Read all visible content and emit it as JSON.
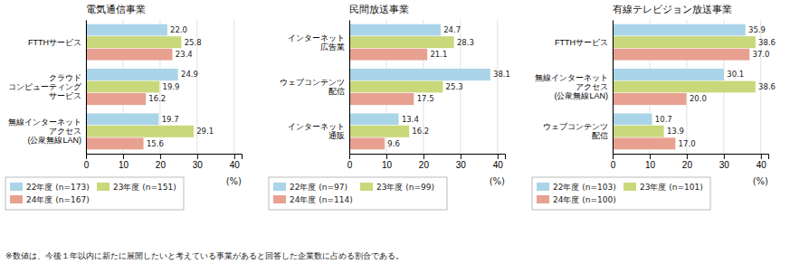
{
  "chart_data": [
    {
      "type": "bar",
      "orientation": "horizontal",
      "title": "電気通信事業",
      "categories": [
        "FTTHサービス",
        "クラウド\nコンピューティング\nサービス",
        "無線インターネット\nアクセス\n(公衆無線LAN)"
      ],
      "series": [
        {
          "name": "22年度 (n=173)",
          "color": "#aad4e8",
          "values": [
            22.0,
            24.9,
            19.7
          ],
          "value_labels": [
            "22.0",
            "24.9",
            "19.7"
          ]
        },
        {
          "name": "23年度 (n=151)",
          "color": "#c8d87a",
          "values": [
            25.8,
            19.9,
            29.1
          ],
          "value_labels": [
            "25.8",
            "19.9",
            "29.1"
          ]
        },
        {
          "name": "24年度 (n=167)",
          "color": "#e8a090",
          "values": [
            23.4,
            16.2,
            15.6
          ],
          "value_labels": [
            "23.4",
            "16.2",
            "15.6"
          ]
        }
      ],
      "xlabel": "(%)",
      "xlim": [
        0,
        42
      ],
      "xticks": [
        0,
        10,
        20,
        30,
        40
      ],
      "grid": true,
      "data_labels": true,
      "legend": "bottom"
    },
    {
      "type": "bar",
      "orientation": "horizontal",
      "title": "民間放送事業",
      "categories": [
        "インターネット\n広告業",
        "ウェブコンテンツ\n配信",
        "インターネット\n通販"
      ],
      "series": [
        {
          "name": "22年度 (n=97)",
          "color": "#aad4e8",
          "values": [
            24.7,
            38.1,
            13.4
          ],
          "value_labels": [
            "24.7",
            "38.1",
            "13.4"
          ]
        },
        {
          "name": "23年度 (n=99)",
          "color": "#c8d87a",
          "values": [
            28.3,
            25.3,
            16.2
          ],
          "value_labels": [
            "28.3",
            "25.3",
            "16.2"
          ]
        },
        {
          "name": "24年度 (n=114)",
          "color": "#e8a090",
          "values": [
            21.1,
            17.5,
            9.6
          ],
          "value_labels": [
            "21.1",
            "17.5",
            "9.6"
          ]
        }
      ],
      "xlabel": "(%)",
      "xlim": [
        0,
        42
      ],
      "xticks": [
        0,
        10,
        20,
        30,
        40
      ],
      "grid": true,
      "data_labels": true,
      "legend": "bottom"
    },
    {
      "type": "bar",
      "orientation": "horizontal",
      "title": "有線テレビジョン放送事業",
      "categories": [
        "FTTHサービス",
        "無線インターネット\nアクセス\n(公衆無線LAN)",
        "ウェブコンテンツ\n配信"
      ],
      "series": [
        {
          "name": "22年度 (n=103)",
          "color": "#aad4e8",
          "values": [
            35.9,
            30.1,
            10.7
          ],
          "value_labels": [
            "35.9",
            "30.1",
            "10.7"
          ]
        },
        {
          "name": "23年度 (n=101)",
          "color": "#c8d87a",
          "values": [
            38.6,
            38.6,
            13.9
          ],
          "value_labels": [
            "38.6",
            "38.6",
            "13.9"
          ]
        },
        {
          "name": "24年度 (n=100)",
          "color": "#e8a090",
          "values": [
            37.0,
            20.0,
            17.0
          ],
          "value_labels": [
            "37.0",
            "20.0",
            "17.0"
          ]
        }
      ],
      "xlabel": "(%)",
      "xlim": [
        0,
        42
      ],
      "xticks": [
        0,
        10,
        20,
        30,
        40
      ],
      "grid": true,
      "data_labels": true,
      "legend": "bottom"
    }
  ],
  "footnote": "※数値は、今後１年以内に新たに展開したいと考えている事業があると回答した企業数に占める割合である。"
}
